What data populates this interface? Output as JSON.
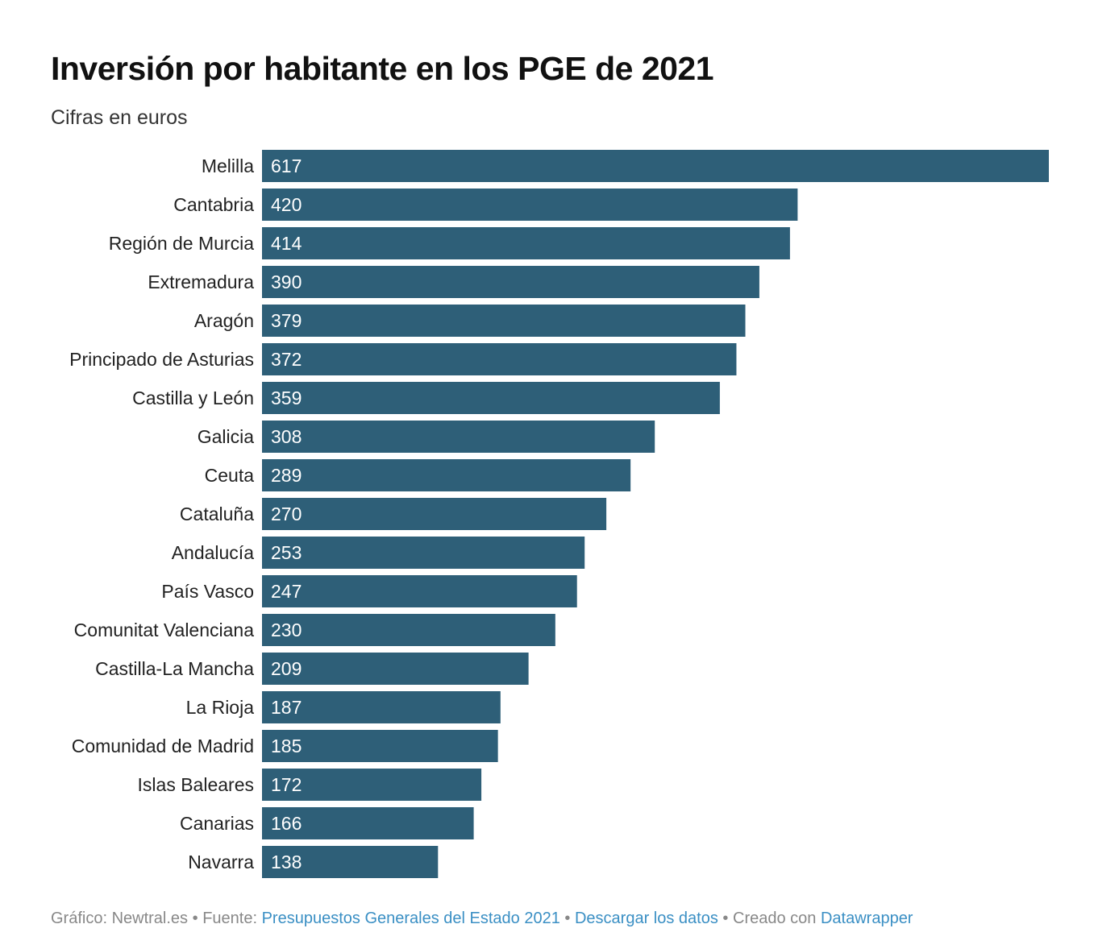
{
  "title": "Inversión por habitante en los PGE de 2021",
  "subtitle": "Cifras en euros",
  "chart_data": {
    "type": "bar",
    "orientation": "horizontal",
    "bar_color": "#2e5f78",
    "label_color": "#ffffff",
    "categories": [
      "Melilla",
      "Cantabria",
      "Región de Murcia",
      "Extremadura",
      "Aragón",
      "Principado de Asturias",
      "Castilla y León",
      "Galicia",
      "Ceuta",
      "Cataluña",
      "Andalucía",
      "País Vasco",
      "Comunitat Valenciana",
      "Castilla-La Mancha",
      "La Rioja",
      "Comunidad de Madrid",
      "Islas Baleares",
      "Canarias",
      "Navarra"
    ],
    "values": [
      617,
      420,
      414,
      390,
      379,
      372,
      359,
      308,
      289,
      270,
      253,
      247,
      230,
      209,
      187,
      185,
      172,
      166,
      138
    ],
    "xlim": [
      0,
      617
    ],
    "grid": false,
    "legend": "none"
  },
  "footer": {
    "grafico": "Gráfico: Newtral.es",
    "fuente_label": "Fuente:",
    "fuente_link": "Presupuestos Generales del Estado 2021",
    "descargar": "Descargar los datos",
    "creado": "Creado con",
    "creado_link": "Datawrapper",
    "separator": "•"
  },
  "colors": {
    "link": "#3a8fc4",
    "footer_text": "#888888"
  }
}
